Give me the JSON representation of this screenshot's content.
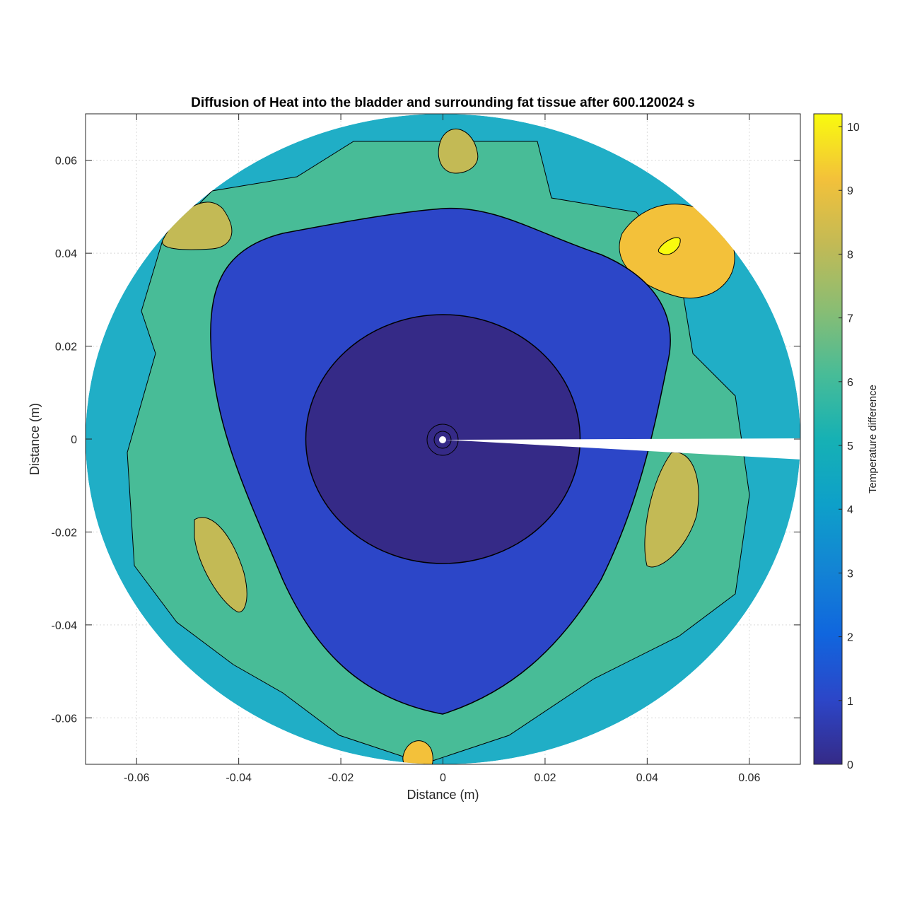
{
  "chart_data": {
    "type": "contour",
    "title": "Diffusion of Heat into the bladder and surrounding fat tissue after 600.120024 s",
    "xlabel": "Distance (m)",
    "ylabel": "Distance (m)",
    "xlim": [
      -0.07,
      0.07
    ],
    "ylim": [
      -0.07,
      0.07
    ],
    "xticks": [
      -0.06,
      -0.04,
      -0.02,
      0,
      0.02,
      0.04,
      0.06
    ],
    "xtick_labels": [
      "-0.06",
      "-0.04",
      "-0.02",
      "0",
      "0.02",
      "0.04",
      "0.06"
    ],
    "yticks": [
      0.06,
      0.04,
      0.02,
      0,
      -0.02,
      -0.04,
      -0.06
    ],
    "ytick_labels": [
      "0.06",
      "0.04",
      "0.02",
      "0",
      "-0.02",
      "-0.04",
      "-0.06"
    ],
    "grid": true,
    "colormap": "parula",
    "colorbar": {
      "label": "Temperature difference",
      "lim": [
        0,
        10.2
      ],
      "ticks": [
        0,
        1,
        2,
        3,
        4,
        5,
        6,
        7,
        8,
        9,
        10
      ],
      "tick_labels": [
        "0",
        "1",
        "2",
        "3",
        "4",
        "5",
        "6",
        "7",
        "8",
        "9",
        "10"
      ]
    },
    "domain_radius_m": 0.07,
    "regions": [
      {
        "name": "inner core",
        "radius_m": 0.027,
        "value": 0.3
      },
      {
        "name": "bladder",
        "value": 1.0,
        "boundary_radius_m": 0.05
      },
      {
        "name": "fat tissue",
        "value_range": [
          2.5,
          10.2
        ]
      }
    ],
    "hot_spots": [
      {
        "x": 0.045,
        "y": 0.041,
        "value": 10.0
      },
      {
        "x": -0.047,
        "y": -0.027,
        "value": 7.5
      },
      {
        "x": 0.046,
        "y": -0.015,
        "value": 7.5
      },
      {
        "x": 0.003,
        "y": 0.063,
        "value": 7.5
      },
      {
        "x": -0.005,
        "y": -0.069,
        "value": 8.0
      },
      {
        "x": -0.052,
        "y": 0.042,
        "value": 7.2
      }
    ]
  }
}
